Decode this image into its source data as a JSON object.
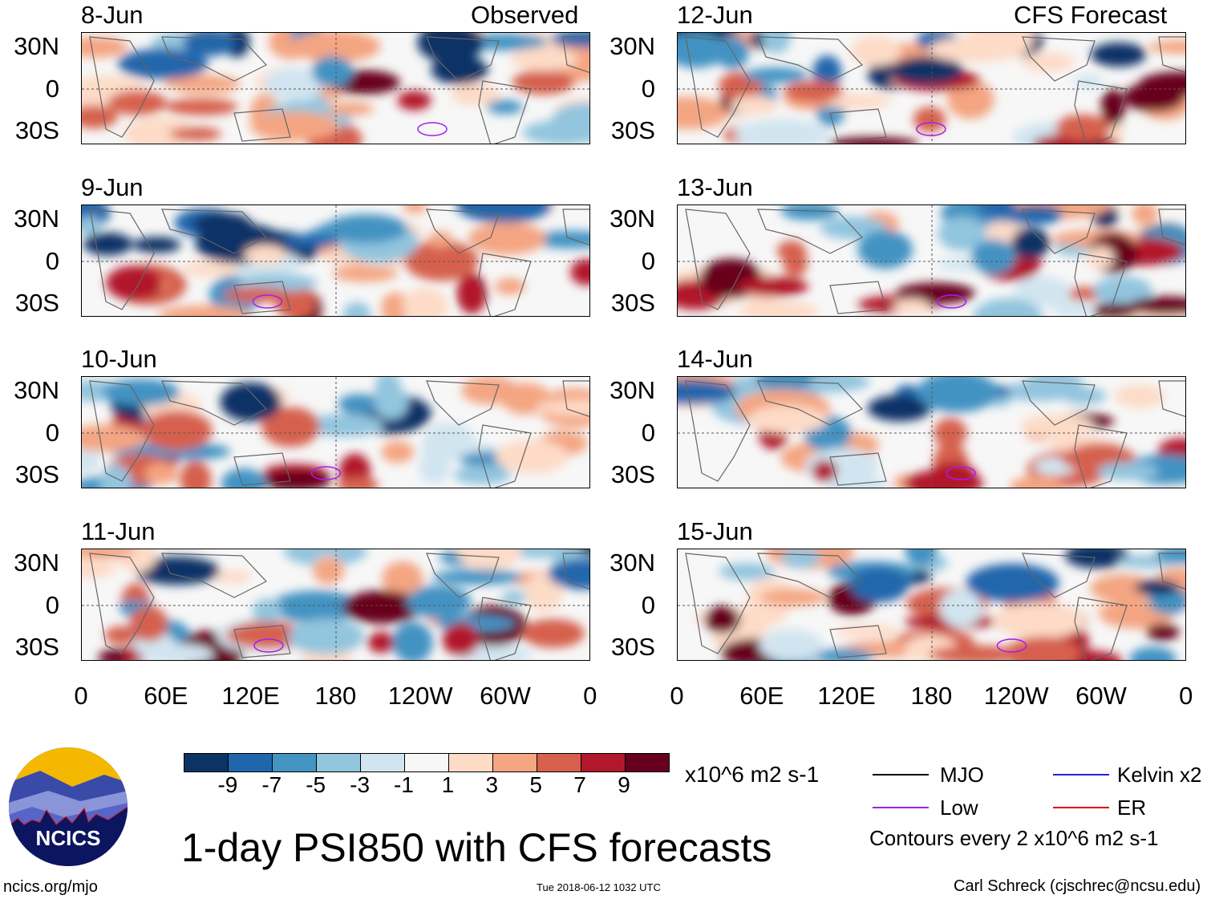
{
  "header": {
    "observed": "Observed",
    "forecast": "CFS Forecast"
  },
  "panels": [
    {
      "date": "8-Jun",
      "group": "observed"
    },
    {
      "date": "9-Jun",
      "group": "observed"
    },
    {
      "date": "10-Jun",
      "group": "observed"
    },
    {
      "date": "11-Jun",
      "group": "observed"
    },
    {
      "date": "12-Jun",
      "group": "forecast"
    },
    {
      "date": "13-Jun",
      "group": "forecast"
    },
    {
      "date": "14-Jun",
      "group": "forecast"
    },
    {
      "date": "15-Jun",
      "group": "forecast"
    }
  ],
  "lat_labels": [
    "30N",
    "0",
    "30S"
  ],
  "lon_labels": [
    "0",
    "60E",
    "120E",
    "180",
    "120W",
    "60W",
    "0"
  ],
  "colorbar": {
    "colors": [
      "#0b3366",
      "#2166ac",
      "#4393c3",
      "#92c5de",
      "#d1e5f0",
      "#f7f7f7",
      "#fddbc7",
      "#f4a582",
      "#d6604d",
      "#b2182b",
      "#67001f"
    ],
    "labels": [
      "-9",
      "-7",
      "-5",
      "-3",
      "-1",
      "1",
      "3",
      "5",
      "7",
      "9"
    ],
    "units": "x10^6 m2 s-1"
  },
  "title": "1-day PSI850 with CFS forecasts",
  "legend": {
    "items": [
      {
        "label": "MJO",
        "color": "#000000"
      },
      {
        "label": "Kelvin x2",
        "color": "#2020e0"
      },
      {
        "label": "Low",
        "color": "#a020f0"
      },
      {
        "label": "ER",
        "color": "#e00000"
      }
    ],
    "note": "Contours every 2 x10^6 m2 s-1"
  },
  "logo": {
    "text": "NCICS"
  },
  "footer": {
    "url": "ncics.org/mjo",
    "timestamp": "Tue 2018-06-12 1032 UTC",
    "credit": "Carl Schreck (cjschrec@ncsu.edu)"
  }
}
